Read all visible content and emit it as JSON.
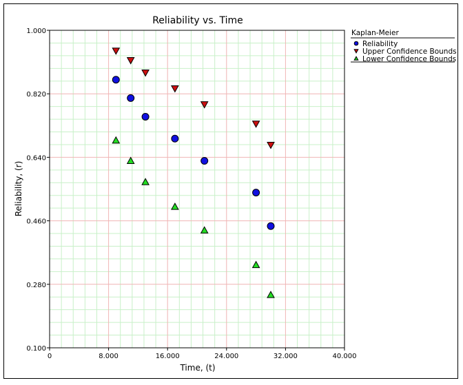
{
  "chart_data": {
    "type": "scatter",
    "title": "Reliability vs. Time",
    "xlabel": "Time, (t)",
    "ylabel": "Reliability, (r)",
    "xlim": [
      0,
      40
    ],
    "ylim": [
      0.1,
      1.0
    ],
    "x_ticks": [
      "0",
      "8.000",
      "16.000",
      "24.000",
      "32.000",
      "40.000"
    ],
    "y_ticks": [
      "0.100",
      "0.280",
      "0.460",
      "0.640",
      "0.820",
      "1.000"
    ],
    "grid": true,
    "legend_title": "Kaplan-Meier",
    "legend_position": "right",
    "series": [
      {
        "name": "Reliability",
        "marker": "circle",
        "color": "#1010e0",
        "x": [
          9,
          11,
          13,
          17,
          21,
          28,
          30
        ],
        "y": [
          0.86,
          0.808,
          0.755,
          0.693,
          0.63,
          0.54,
          0.445
        ]
      },
      {
        "name": "Upper Confidence Bounds",
        "marker": "triangle-down",
        "color": "#cc1010",
        "x": [
          9,
          11,
          13,
          17,
          21,
          28,
          30
        ],
        "y": [
          0.942,
          0.915,
          0.88,
          0.835,
          0.79,
          0.735,
          0.675
        ]
      },
      {
        "name": "Lower Confidence Bounds",
        "marker": "triangle-up",
        "color": "#22dd22",
        "x": [
          9,
          11,
          13,
          17,
          21,
          28,
          30
        ],
        "y": [
          0.688,
          0.63,
          0.57,
          0.5,
          0.433,
          0.335,
          0.25
        ]
      }
    ]
  }
}
